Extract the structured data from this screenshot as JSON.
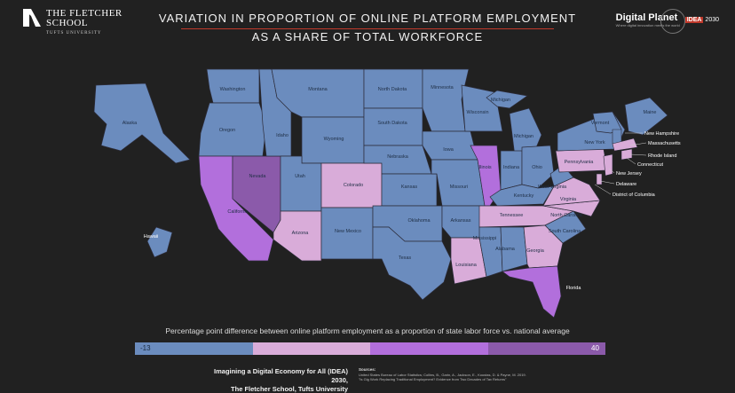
{
  "header": {
    "logo_line1": "THE FLETCHER",
    "logo_line2": "SCHOOL",
    "logo_line3": "TUFTS UNIVERSITY",
    "title_line1": "VARIATION IN PROPORTION OF ONLINE PLATFORM EMPLOYMENT",
    "title_line2": "AS A SHARE OF TOTAL WORKFORCE",
    "brand": "Digital Planet",
    "brand_sub": "Where digital innovation meets the world",
    "idea_box": "IDEA",
    "idea_year": "2030"
  },
  "colors": {
    "background": "#212121",
    "bin1": "#6b8cbe",
    "bin2": "#d9acd9",
    "bin3": "#b26fdc",
    "bin4": "#8b5aaa",
    "border": "#2c2c3a",
    "title_underline": "#c0392b"
  },
  "map": {
    "states": [
      {
        "name": "Washington",
        "bin": 1
      },
      {
        "name": "Oregon",
        "bin": 1
      },
      {
        "name": "California",
        "bin": 3
      },
      {
        "name": "Nevada",
        "bin": 4
      },
      {
        "name": "Idaho",
        "bin": 1
      },
      {
        "name": "Montana",
        "bin": 1
      },
      {
        "name": "Wyoming",
        "bin": 1
      },
      {
        "name": "Utah",
        "bin": 1
      },
      {
        "name": "Arizona",
        "bin": 2
      },
      {
        "name": "Colorado",
        "bin": 2
      },
      {
        "name": "New Mexico",
        "bin": 1
      },
      {
        "name": "North Dakota",
        "bin": 1
      },
      {
        "name": "South Dakota",
        "bin": 1
      },
      {
        "name": "Nebraska",
        "bin": 1
      },
      {
        "name": "Kansas",
        "bin": 1
      },
      {
        "name": "Oklahoma",
        "bin": 1
      },
      {
        "name": "Texas",
        "bin": 1
      },
      {
        "name": "Minnesota",
        "bin": 1
      },
      {
        "name": "Iowa",
        "bin": 1
      },
      {
        "name": "Missouri",
        "bin": 1
      },
      {
        "name": "Arkansas",
        "bin": 1
      },
      {
        "name": "Louisiana",
        "bin": 2
      },
      {
        "name": "Wisconsin",
        "bin": 1
      },
      {
        "name": "Illinois",
        "bin": 3
      },
      {
        "name": "Michigan",
        "bin": 1
      },
      {
        "name": "Indiana",
        "bin": 1
      },
      {
        "name": "Ohio",
        "bin": 1
      },
      {
        "name": "Kentucky",
        "bin": 1
      },
      {
        "name": "Tennessee",
        "bin": 2
      },
      {
        "name": "Mississippi",
        "bin": 1
      },
      {
        "name": "Alabama",
        "bin": 1
      },
      {
        "name": "Georgia",
        "bin": 2
      },
      {
        "name": "Florida",
        "bin": 3
      },
      {
        "name": "South Carolina",
        "bin": 1
      },
      {
        "name": "North Carolina",
        "bin": 2
      },
      {
        "name": "Virginia",
        "bin": 2
      },
      {
        "name": "West Virginia",
        "bin": 1
      },
      {
        "name": "Pennsylvania",
        "bin": 2
      },
      {
        "name": "New York",
        "bin": 1
      },
      {
        "name": "Vermont",
        "bin": 1
      },
      {
        "name": "Maine",
        "bin": 1
      },
      {
        "name": "Alaska",
        "bin": 1
      },
      {
        "name": "Hawaii",
        "bin": 1
      }
    ],
    "callouts": [
      "New Hampshire",
      "Massachusetts",
      "Rhode Island",
      "Connecticut",
      "New Jersey",
      "Delaware",
      "District of Columbia"
    ],
    "michigan_upper_label": "Michigan"
  },
  "legend": {
    "title": "Percentage point difference between online platform employment as a proportion of state labor force vs. national average",
    "min": "-13",
    "max": "40"
  },
  "footer": {
    "line1": "Imagining a Digital Economy for All (IDEA) 2030,",
    "line2": "The Fletcher School, Tufts University",
    "sources_heading": "Sources:",
    "sources_line1": "United States Bureau of Labor Statistics; Collins, B., Garin, A., Jackson, E., Koustas, D. & Payne, M. 2019.",
    "sources_line2": "\"Is Gig Work Replacing Traditional Employment? Evidence from Two Decades of Tax Returns\""
  }
}
